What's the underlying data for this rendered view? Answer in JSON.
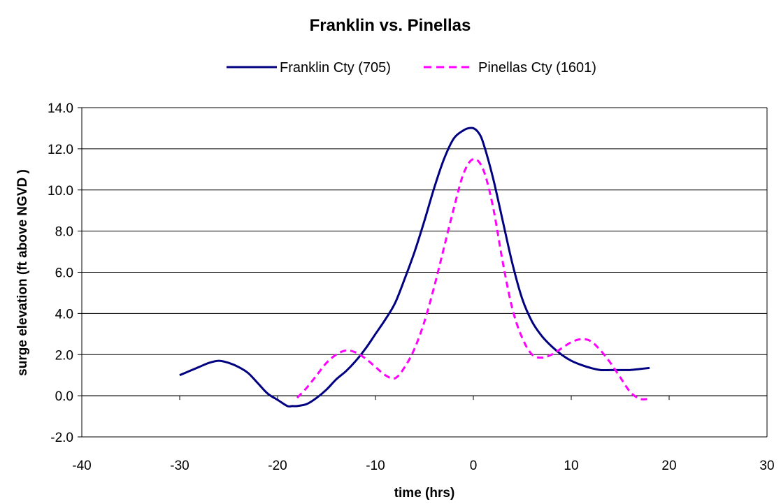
{
  "chart_data": {
    "type": "line",
    "title": "Franklin vs. Pinellas",
    "xlabel": "time (hrs)",
    "ylabel": "surge elevation (ft above NGVD )",
    "xlim": [
      -40,
      30
    ],
    "ylim": [
      -2,
      14
    ],
    "x_ticks": [
      "-40",
      "-30",
      "-20",
      "-10",
      "0",
      "10",
      "20",
      "30"
    ],
    "y_ticks": [
      "-2.0",
      "0.0",
      "2.0",
      "4.0",
      "6.0",
      "8.0",
      "10.0",
      "12.0",
      "14.0"
    ],
    "grid": "horizontal",
    "legend": "top",
    "series": [
      {
        "name": "Franklin Cty (705)",
        "color": "#000080",
        "style": "solid",
        "x": [
          -30,
          -29,
          -28,
          -27,
          -26,
          -25,
          -24,
          -23,
          -22,
          -21,
          -20,
          -19,
          -18.5,
          -18,
          -17,
          -16,
          -15,
          -14,
          -13,
          -12,
          -11,
          -10,
          -9,
          -8,
          -7,
          -6,
          -5,
          -4,
          -3,
          -2,
          -1,
          -0.5,
          0,
          0.5,
          1,
          2,
          3,
          4,
          5,
          6,
          7,
          8,
          9,
          10,
          11,
          12,
          13,
          14,
          15,
          16,
          17,
          18
        ],
        "y": [
          1.0,
          1.2,
          1.4,
          1.6,
          1.7,
          1.6,
          1.4,
          1.1,
          0.6,
          0.1,
          -0.2,
          -0.5,
          -0.5,
          -0.5,
          -0.4,
          -0.1,
          0.3,
          0.8,
          1.2,
          1.7,
          2.3,
          3.0,
          3.7,
          4.5,
          5.7,
          7.0,
          8.5,
          10.1,
          11.5,
          12.5,
          12.9,
          13.0,
          13.0,
          12.8,
          12.3,
          10.6,
          8.5,
          6.4,
          4.7,
          3.6,
          2.9,
          2.4,
          2.0,
          1.7,
          1.5,
          1.35,
          1.25,
          1.25,
          1.25,
          1.25,
          1.3,
          1.35
        ]
      },
      {
        "name": "Pinellas Cty (1601)",
        "color": "#ff00ff",
        "style": "dashed",
        "x": [
          -18,
          -17,
          -16,
          -15,
          -14,
          -13,
          -12,
          -11,
          -10,
          -9,
          -8,
          -7,
          -6,
          -5,
          -4,
          -3,
          -2,
          -1,
          0,
          1,
          2,
          3,
          4,
          5,
          6,
          7,
          8,
          9,
          10,
          11,
          12,
          13,
          14,
          15,
          16,
          17,
          18
        ],
        "y": [
          -0.1,
          0.4,
          1.0,
          1.6,
          2.0,
          2.2,
          2.1,
          1.8,
          1.4,
          1.0,
          0.85,
          1.4,
          2.3,
          3.6,
          5.3,
          7.2,
          9.1,
          10.8,
          11.5,
          11.0,
          9.2,
          6.5,
          4.2,
          2.8,
          2.0,
          1.85,
          2.0,
          2.3,
          2.6,
          2.75,
          2.65,
          2.2,
          1.6,
          0.9,
          0.2,
          -0.15,
          -0.15
        ]
      }
    ]
  }
}
